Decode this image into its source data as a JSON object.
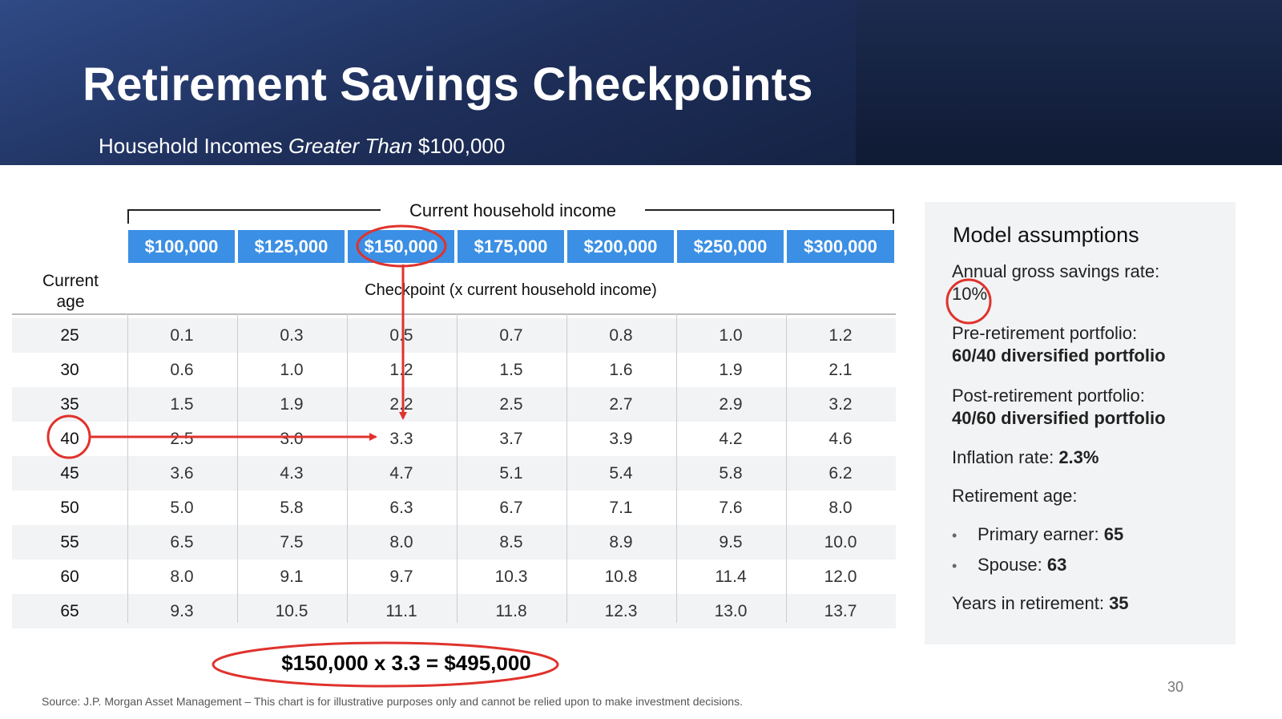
{
  "header": {
    "title": "Retirement Savings Checkpoints",
    "subtitle_prefix": "Household Incomes ",
    "subtitle_emphasis": "Greater Than",
    "subtitle_suffix": " $100,000"
  },
  "table": {
    "group_label": "Current household income",
    "income_levels": [
      "$100,000",
      "$125,000",
      "$150,000",
      "$175,000",
      "$200,000",
      "$250,000",
      "$300,000"
    ],
    "age_header_line1": "Current",
    "age_header_line2": "age",
    "checkpoint_label": "Checkpoint (x current household income)",
    "rows": [
      {
        "age": "25",
        "values": [
          "0.1",
          "0.3",
          "0.5",
          "0.7",
          "0.8",
          "1.0",
          "1.2"
        ]
      },
      {
        "age": "30",
        "values": [
          "0.6",
          "1.0",
          "1.2",
          "1.5",
          "1.6",
          "1.9",
          "2.1"
        ]
      },
      {
        "age": "35",
        "values": [
          "1.5",
          "1.9",
          "2.2",
          "2.5",
          "2.7",
          "2.9",
          "3.2"
        ]
      },
      {
        "age": "40",
        "values": [
          "2.5",
          "3.0",
          "3.3",
          "3.7",
          "3.9",
          "4.2",
          "4.6"
        ]
      },
      {
        "age": "45",
        "values": [
          "3.6",
          "4.3",
          "4.7",
          "5.1",
          "5.4",
          "5.8",
          "6.2"
        ]
      },
      {
        "age": "50",
        "values": [
          "5.0",
          "5.8",
          "6.3",
          "6.7",
          "7.1",
          "7.6",
          "8.0"
        ]
      },
      {
        "age": "55",
        "values": [
          "6.5",
          "7.5",
          "8.0",
          "8.5",
          "8.9",
          "9.5",
          "10.0"
        ]
      },
      {
        "age": "60",
        "values": [
          "8.0",
          "9.1",
          "9.7",
          "10.3",
          "10.8",
          "11.4",
          "12.0"
        ]
      },
      {
        "age": "65",
        "values": [
          "9.3",
          "10.5",
          "11.1",
          "11.8",
          "12.3",
          "13.0",
          "13.7"
        ]
      }
    ]
  },
  "assumptions": {
    "title": "Model assumptions",
    "savings_label": "Annual gross savings rate:",
    "savings_value": "10%",
    "pre_label": "Pre-retirement portfolio:",
    "pre_value": "60/40 diversified portfolio",
    "post_label": "Post-retirement portfolio:",
    "post_value": "40/60 diversified portfolio",
    "inflation_label": "Inflation rate: ",
    "inflation_value": "2.3%",
    "retirement_age_label": "Retirement age:",
    "primary_label": "Primary earner: ",
    "primary_value": "65",
    "spouse_label": "Spouse: ",
    "spouse_value": "63",
    "years_label": "Years in retirement: ",
    "years_value": "35",
    "bullet": "•"
  },
  "example_formula": "$150,000 x 3.3 = $495,000",
  "source_note": "Source: J.P. Morgan Asset Management – This chart is for illustrative purposes only and cannot be relied upon to make investment decisions.",
  "page_number": "30",
  "colors": {
    "header_blue": "#1e2f5a",
    "income_blue": "#3b8fe4",
    "annotation_red": "#e0322c",
    "row_shade": "#f2f3f5"
  }
}
